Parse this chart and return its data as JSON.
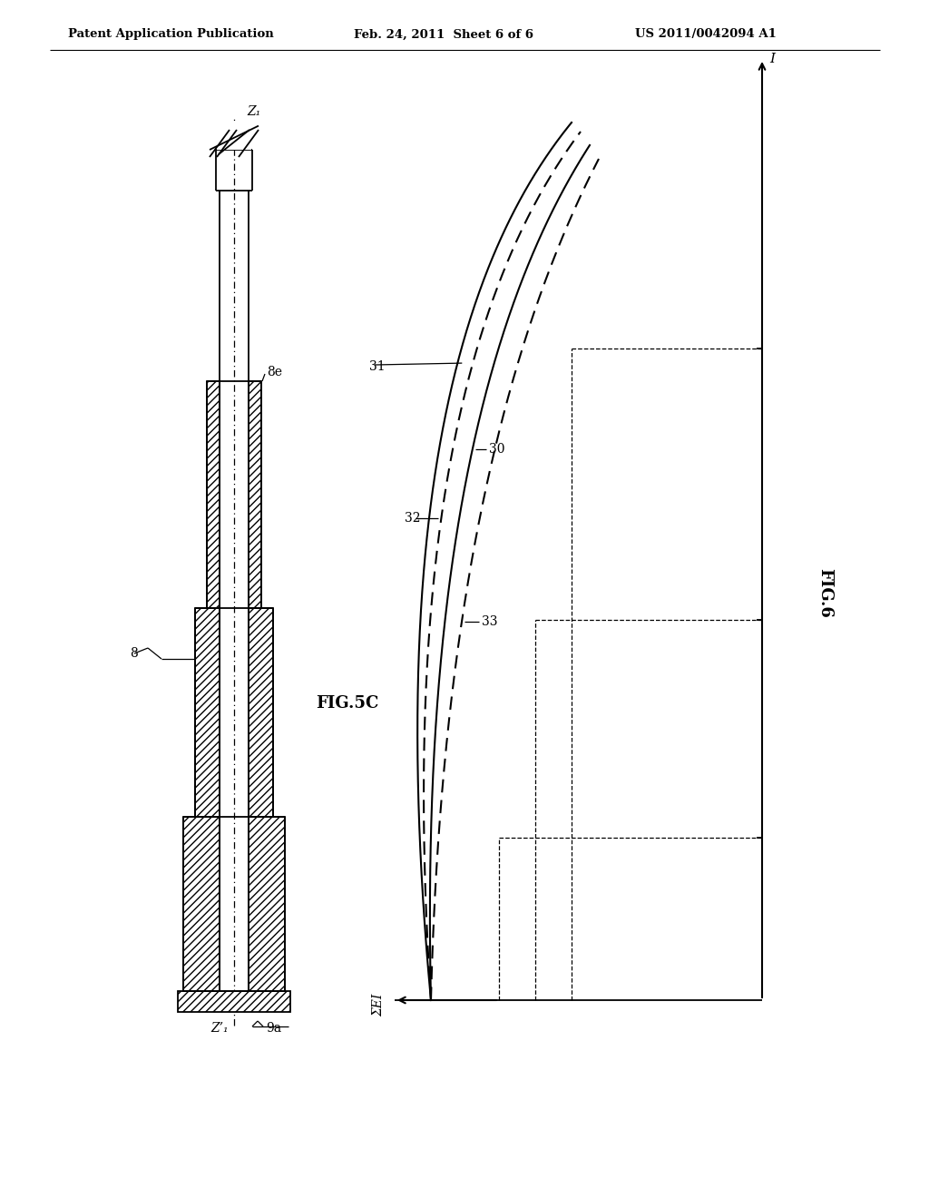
{
  "header_left": "Patent Application Publication",
  "header_mid": "Feb. 24, 2011  Sheet 6 of 6",
  "header_right": "US 2011/0042094 A1",
  "fig5c_label": "FIG.5C",
  "fig6_label": "FIG.6",
  "label_8": "8",
  "label_8e": "8e",
  "label_9a": "9a",
  "label_Z1": "Z₁",
  "label_Z1_prime": "Z’₁",
  "label_30": "30",
  "label_31": "31",
  "label_32": "32",
  "label_33": "33",
  "label_EI": "ΣEI",
  "label_I": "I",
  "bg_color": "#ffffff",
  "line_color": "#000000"
}
